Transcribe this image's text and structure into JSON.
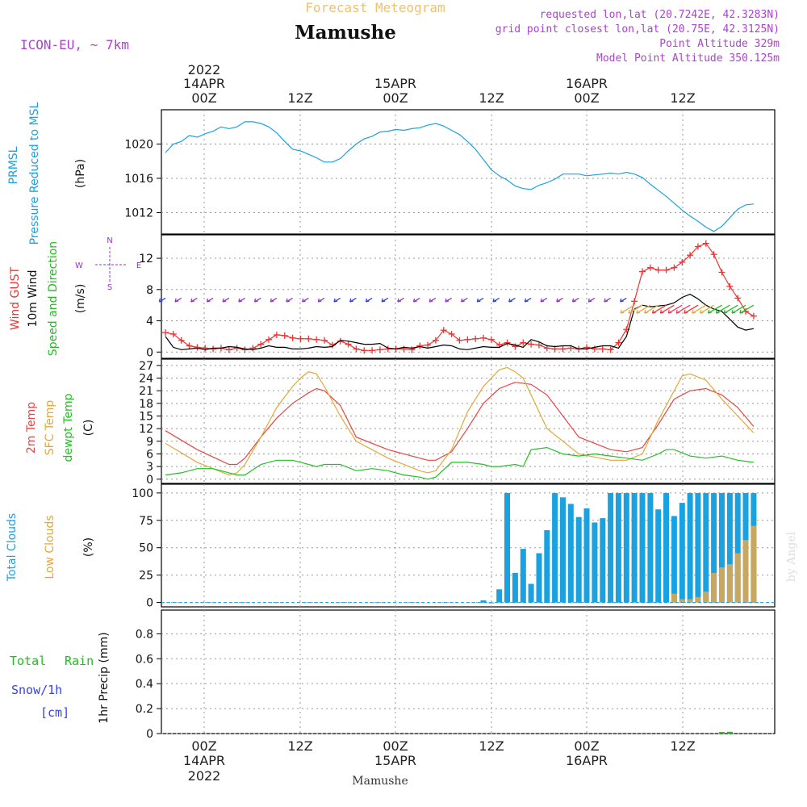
{
  "header": {
    "super_title": "Forecast Meteogram",
    "location": "Mamushe",
    "model": "ICON-EU, ~ 7km",
    "requested": "requested lon,lat (20.7242E, 42.3283N)",
    "grid_point": "grid point closest lon,lat (20.75E, 42.3125N)",
    "point_altitude": "Point Altitude 329m",
    "model_altitude": "Model Point Altitude 350.125m"
  },
  "time_axis": {
    "top_year": "2022",
    "tick_labels": [
      "00Z",
      "12Z",
      "00Z",
      "12Z",
      "00Z",
      "12Z"
    ],
    "date_labels": [
      "14APR",
      "15APR",
      "16APR"
    ],
    "bottom_year": "2022",
    "footer_label": "Mamushe"
  },
  "watermark": "by Angel",
  "colors": {
    "pressure": "#1aa2e0",
    "gust": "#ee3333",
    "wind": "#000000",
    "barb_title": "#22bb22",
    "compass": "#9933cc",
    "temp2m": "#e84444",
    "sfc": "#e0a83a",
    "dewpt": "#22c022",
    "total_clouds": "#1aa2e0",
    "low_clouds": "#c8a860",
    "rain": "#22bb22",
    "snow": "#3344dd",
    "header_accent": "#aa44cc",
    "super_title": "#f0c070",
    "grid": "#999999"
  },
  "panels": {
    "pressure": {
      "labels": [
        "PRMSL",
        "Pressure Reduced to MSL",
        "(hPa)"
      ]
    },
    "wind": {
      "labels": [
        "Wind GUST",
        "10m Wind",
        "Speed and Direction",
        "(m/s)"
      ],
      "compass": {
        "n": "N",
        "s": "S",
        "w": "W",
        "e": "E"
      }
    },
    "temperature": {
      "labels": [
        "2m Temp",
        "SFC Temp",
        "dewpt Temp",
        "(C)"
      ]
    },
    "clouds": {
      "labels": [
        "Total Clouds",
        "Low Clouds",
        "(%)"
      ]
    },
    "precip": {
      "labels": [
        "Total",
        "Rain",
        "Snow/1h",
        "[cm]",
        "1hr Precip (mm)"
      ]
    }
  },
  "chart_data": [
    {
      "type": "line",
      "ylim": [
        1009.5,
        1024
      ],
      "yticks": [
        1012,
        1016,
        1020
      ],
      "series": [
        {
          "name": "PRMSL",
          "color": "#1aa2e0",
          "x": [
            0,
            1,
            2,
            3,
            4,
            5,
            6,
            7,
            8,
            9,
            10,
            11,
            12,
            13,
            14,
            15,
            16,
            17,
            18,
            19,
            20,
            21,
            22,
            23,
            24,
            25,
            26,
            27,
            28,
            29,
            30,
            31,
            32,
            33,
            34,
            35,
            36,
            37,
            38,
            39,
            40,
            41,
            42,
            43,
            44,
            45,
            46,
            47,
            48,
            49,
            50,
            51,
            52,
            53,
            54,
            55,
            56,
            57,
            58,
            59,
            60,
            61,
            62,
            63,
            64,
            65,
            66,
            67,
            68,
            69,
            70,
            71,
            72,
            73,
            74
          ],
          "y": [
            1019,
            1020,
            1020.3,
            1021,
            1020.8,
            1021.2,
            1021.5,
            1022,
            1021.8,
            1022,
            1022.6,
            1022.6,
            1022.4,
            1022,
            1021.3,
            1020.3,
            1019.4,
            1019.2,
            1018.8,
            1018.4,
            1017.9,
            1017.9,
            1018.3,
            1019.2,
            1020,
            1020.6,
            1020.9,
            1021.4,
            1021.5,
            1021.7,
            1021.6,
            1021.8,
            1021.9,
            1022.2,
            1022.4,
            1022.1,
            1021.6,
            1021.1,
            1020.3,
            1019.4,
            1018.2,
            1017,
            1016.3,
            1015.8,
            1015.1,
            1014.8,
            1014.7,
            1015.2,
            1015.5,
            1015.9,
            1016.5,
            1016.5,
            1016.5,
            1016.3,
            1016.4,
            1016.5,
            1016.6,
            1016.5,
            1016.7,
            1016.5,
            1016.1,
            1015.3,
            1014.6,
            1013.9,
            1013.1,
            1012.3,
            1011.6,
            1011,
            1010.3,
            1009.8,
            1010.4,
            1011.4,
            1012.4,
            1012.9,
            1013
          ]
        }
      ]
    },
    {
      "type": "line",
      "ylim": [
        -0.8,
        15
      ],
      "yticks": [
        0,
        4,
        8,
        12
      ],
      "series": [
        {
          "name": "Wind GUST",
          "color": "#ee3333",
          "x": [
            0,
            1,
            2,
            3,
            4,
            5,
            6,
            7,
            8,
            9,
            10,
            11,
            12,
            13,
            14,
            15,
            16,
            17,
            18,
            19,
            20,
            21,
            22,
            23,
            24,
            25,
            26,
            27,
            28,
            29,
            30,
            31,
            32,
            33,
            34,
            35,
            36,
            37,
            38,
            39,
            40,
            41,
            42,
            43,
            44,
            45,
            46,
            47,
            48,
            49,
            50,
            51,
            52,
            53,
            54,
            55,
            56,
            57,
            58,
            59,
            60,
            61,
            62,
            63,
            64,
            65,
            66,
            67,
            68,
            69,
            70,
            71,
            72,
            73,
            74
          ],
          "y": [
            2.5,
            2.3,
            1.5,
            0.8,
            0.6,
            0.5,
            0.4,
            0.5,
            0.3,
            0.5,
            0.3,
            0.5,
            1,
            1.6,
            2.2,
            2.1,
            1.8,
            1.7,
            1.7,
            1.6,
            1.5,
            0.9,
            1.4,
            1.0,
            0.4,
            0.2,
            0.2,
            0.3,
            0.4,
            0.4,
            0.4,
            0.3,
            0.8,
            0.9,
            1.5,
            2.8,
            2.3,
            1.5,
            1.6,
            1.7,
            1.8,
            1.6,
            0.9,
            1.2,
            0.7,
            1.2,
            1,
            0.9,
            0.5,
            0.4,
            0.4,
            0.5,
            0.4,
            0.6,
            0.4,
            0.4,
            0.3,
            1.2,
            2.9,
            6.5,
            10.3,
            10.8,
            10.5,
            10.5,
            10.8,
            11.5,
            12.4,
            13.5,
            13.9,
            12.5,
            10.2,
            8.4,
            6.9,
            5.2,
            4.6
          ]
        },
        {
          "name": "10m Wind",
          "color": "#000000",
          "x": [
            0,
            1,
            2,
            3,
            4,
            5,
            6,
            7,
            8,
            9,
            10,
            11,
            12,
            13,
            14,
            15,
            16,
            17,
            18,
            19,
            20,
            21,
            22,
            23,
            24,
            25,
            26,
            27,
            28,
            29,
            30,
            31,
            32,
            33,
            34,
            35,
            36,
            37,
            38,
            39,
            40,
            41,
            42,
            43,
            44,
            45,
            46,
            47,
            48,
            49,
            50,
            51,
            52,
            53,
            54,
            55,
            56,
            57,
            58,
            59,
            60,
            61,
            62,
            63,
            64,
            65,
            66,
            67,
            68,
            69,
            70,
            71,
            72,
            73,
            74
          ],
          "y": [
            2,
            0.6,
            0.3,
            0.4,
            0.5,
            0.3,
            0.5,
            0.5,
            0.7,
            0.6,
            0.4,
            0.3,
            0.5,
            0.8,
            0.6,
            0.6,
            0.4,
            0.4,
            0.5,
            0.7,
            0.6,
            0.7,
            1.5,
            1.4,
            1.2,
            1.0,
            1.0,
            1.1,
            0.5,
            0.4,
            0.6,
            0.5,
            0.7,
            0.5,
            0.7,
            0.9,
            0.8,
            0.4,
            0.3,
            0.5,
            0.7,
            0.6,
            0.6,
            1.1,
            0.9,
            0.6,
            1.6,
            1.3,
            0.8,
            0.7,
            0.8,
            0.8,
            0.4,
            0.4,
            0.6,
            0.8,
            0.8,
            0.5,
            2,
            5.5,
            6,
            5.8,
            5.9,
            6,
            6.3,
            7,
            7.4,
            6.8,
            6,
            5.5,
            5.2,
            4.2,
            3.2,
            2.8,
            3
          ]
        }
      ],
      "barbs": {
        "x": [
          0,
          2,
          4,
          6,
          8,
          10,
          12,
          14,
          16,
          18,
          20,
          22,
          24,
          26,
          28,
          30,
          32,
          34,
          36,
          38,
          40,
          42,
          44,
          46,
          48,
          50,
          52,
          54,
          56,
          58,
          59,
          60,
          61,
          62,
          63,
          64,
          65,
          66,
          67,
          68,
          69,
          70,
          71,
          72,
          73,
          74
        ],
        "colors": [
          "#3344dd",
          "#9933cc",
          "#9933cc",
          "#9933cc",
          "#9933cc",
          "#9933cc",
          "#9933cc",
          "#9933cc",
          "#9933cc",
          "#9933cc",
          "#9933cc",
          "#3344dd",
          "#3344dd",
          "#3344dd",
          "#3344dd",
          "#9933cc",
          "#9933cc",
          "#9933cc",
          "#9933cc",
          "#9933cc",
          "#3344dd",
          "#3344dd",
          "#3344dd",
          "#3344dd",
          "#9933cc",
          "#9933cc",
          "#9933cc",
          "#9933cc",
          "#9933cc",
          "#3344dd",
          "#e0a83a",
          "#e0a83a",
          "#e0a83a",
          "#e0a83a",
          "#ee3333",
          "#ee3333",
          "#e84060",
          "#e84060",
          "#ee3333",
          "#e0a83a",
          "#e0a83a",
          "#22bb22",
          "#22bb22",
          "#22bb22",
          "#22bb22",
          "#22bb22"
        ]
      }
    },
    {
      "type": "line",
      "ylim": [
        -1,
        28.5
      ],
      "yticks": [
        0,
        3,
        6,
        9,
        12,
        15,
        18,
        21,
        24,
        27
      ],
      "series": [
        {
          "name": "2m Temp",
          "color": "#e84444",
          "x": [
            0,
            4,
            8,
            9,
            10,
            12,
            14,
            16,
            18,
            19,
            20,
            22,
            24,
            28,
            32,
            33,
            34,
            36,
            38,
            40,
            42,
            44,
            46,
            48,
            52,
            56,
            58,
            60,
            62,
            64,
            66,
            68,
            70,
            72,
            74
          ],
          "y": [
            11.5,
            7,
            3.5,
            3.5,
            5,
            10,
            14.5,
            18,
            20.5,
            21.5,
            21,
            17.5,
            10,
            7,
            5,
            4.5,
            4.5,
            6.5,
            12,
            18,
            21.5,
            23,
            22.5,
            20,
            10,
            7,
            6.5,
            7.5,
            13,
            19,
            21,
            21.5,
            20,
            17,
            12.5
          ]
        },
        {
          "name": "SFC Temp",
          "color": "#e0a83a",
          "x": [
            0,
            4,
            8,
            9,
            10,
            12,
            14,
            16,
            17,
            18,
            19,
            20,
            22,
            24,
            28,
            32,
            33,
            34,
            36,
            38,
            40,
            42,
            43,
            44,
            45,
            46,
            48,
            52,
            56,
            58,
            60,
            62,
            64,
            65,
            66,
            68,
            70,
            72,
            74
          ],
          "y": [
            8.5,
            4,
            1,
            1.5,
            3.5,
            10,
            17,
            22,
            24,
            25.5,
            25,
            22,
            15,
            9,
            5,
            2,
            1.5,
            2,
            7,
            16,
            22,
            26,
            26.5,
            25.5,
            24,
            20,
            12,
            6,
            4.5,
            4.5,
            6,
            14,
            21,
            24.5,
            25,
            23.5,
            19,
            15,
            11
          ]
        },
        {
          "name": "dewpt Temp",
          "color": "#22c022",
          "x": [
            0,
            2,
            4,
            6,
            8,
            9,
            10,
            12,
            14,
            16,
            18,
            19,
            20,
            22,
            24,
            26,
            28,
            30,
            32,
            33,
            34,
            36,
            38,
            40,
            41,
            42,
            44,
            45,
            46,
            48,
            50,
            52,
            54,
            56,
            58,
            60,
            62,
            63,
            64,
            66,
            68,
            70,
            72,
            74
          ],
          "y": [
            1,
            1.5,
            2.5,
            2.5,
            1.5,
            1,
            1,
            3.5,
            4.5,
            4.5,
            3.5,
            3,
            3.5,
            3.5,
            2,
            2.5,
            2,
            1,
            0.5,
            0,
            0.5,
            4,
            4,
            3.5,
            3,
            3,
            3.5,
            3,
            7,
            7.5,
            6,
            5.5,
            6,
            5.5,
            5,
            4.5,
            6,
            7,
            7,
            5.5,
            5,
            5.5,
            4.5,
            4
          ]
        }
      ]
    },
    {
      "type": "bar",
      "ylim": [
        -4,
        108
      ],
      "yticks": [
        0,
        25,
        50,
        75,
        100
      ],
      "series": [
        {
          "name": "Total Clouds",
          "color": "#1aa2e0",
          "x": [
            40,
            41,
            42,
            43,
            44,
            45,
            46,
            47,
            48,
            49,
            50,
            51,
            52,
            53,
            54,
            55,
            56,
            57,
            58,
            59,
            60,
            61,
            62,
            63,
            64,
            65,
            66,
            67,
            68,
            69,
            70,
            71,
            72,
            73,
            74
          ],
          "y": [
            2,
            0,
            12,
            100,
            27,
            49,
            17,
            45,
            66,
            100,
            96,
            90,
            78,
            86,
            73,
            77,
            100,
            100,
            100,
            100,
            100,
            100,
            85,
            100,
            79,
            91,
            100,
            100,
            100,
            100,
            100,
            100,
            100,
            100,
            100
          ]
        },
        {
          "name": "Low Clouds",
          "color": "#c8a860",
          "x": [
            64,
            65,
            66,
            67,
            68,
            69,
            70,
            71,
            72,
            73,
            74
          ],
          "y": [
            8,
            3,
            3,
            5,
            10,
            27,
            32,
            35,
            45,
            57,
            70
          ]
        }
      ]
    },
    {
      "type": "bar",
      "ylim": [
        0,
        0.99
      ],
      "yticks": [
        0,
        0.2,
        0.4,
        0.6,
        0.8
      ],
      "series": [
        {
          "name": "Total Rain",
          "color": "#22bb22",
          "x": [
            70,
            71
          ],
          "y": [
            0.012,
            0.014
          ]
        }
      ]
    }
  ]
}
